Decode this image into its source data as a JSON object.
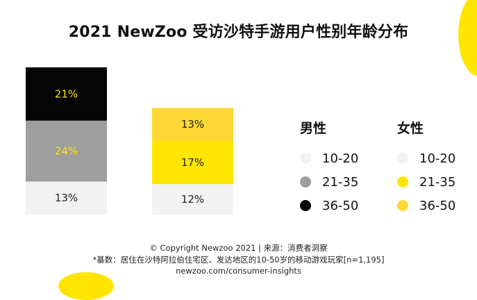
{
  "title": "2021 NewZoo 受访沙特手游用户性别年龄分布",
  "chart_data": {
    "type": "bar",
    "stacked": true,
    "categories": [
      "男性",
      "女性"
    ],
    "series": [
      {
        "name": "10-20",
        "values": [
          13,
          12
        ],
        "colors": [
          "#f2f2f2",
          "#f2f2f2"
        ],
        "label_colors": [
          "#222222",
          "#222222"
        ]
      },
      {
        "name": "21-35",
        "values": [
          24,
          17
        ],
        "colors": [
          "#9e9e9e",
          "#ffe600"
        ],
        "label_colors": [
          "#ffe600",
          "#222222"
        ]
      },
      {
        "name": "36-50",
        "values": [
          21,
          13
        ],
        "colors": [
          "#050505",
          "#fdd835"
        ],
        "label_colors": [
          "#ffe600",
          "#222222"
        ]
      }
    ],
    "value_suffix": "%"
  },
  "legend": {
    "male": {
      "heading": "男性",
      "items": [
        {
          "label": "10-20",
          "color": "#f2f2f2"
        },
        {
          "label": "21-35",
          "color": "#9e9e9e"
        },
        {
          "label": "36-50",
          "color": "#050505"
        }
      ]
    },
    "female": {
      "heading": "女性",
      "items": [
        {
          "label": "10-20",
          "color": "#f2f2f2"
        },
        {
          "label": "21-35",
          "color": "#ffe600"
        },
        {
          "label": "36-50",
          "color": "#fdd835"
        }
      ]
    }
  },
  "footer": {
    "copyright": "© Copyright Newzoo 2021 | 来源：消费者洞察",
    "note": "*基数：居住在沙特阿拉伯住宅区、发达地区的10-50岁的移动游戏玩家[n=1,195]",
    "url": "newzoo.com/consumer-insights"
  },
  "accent_color": "#ffe600"
}
